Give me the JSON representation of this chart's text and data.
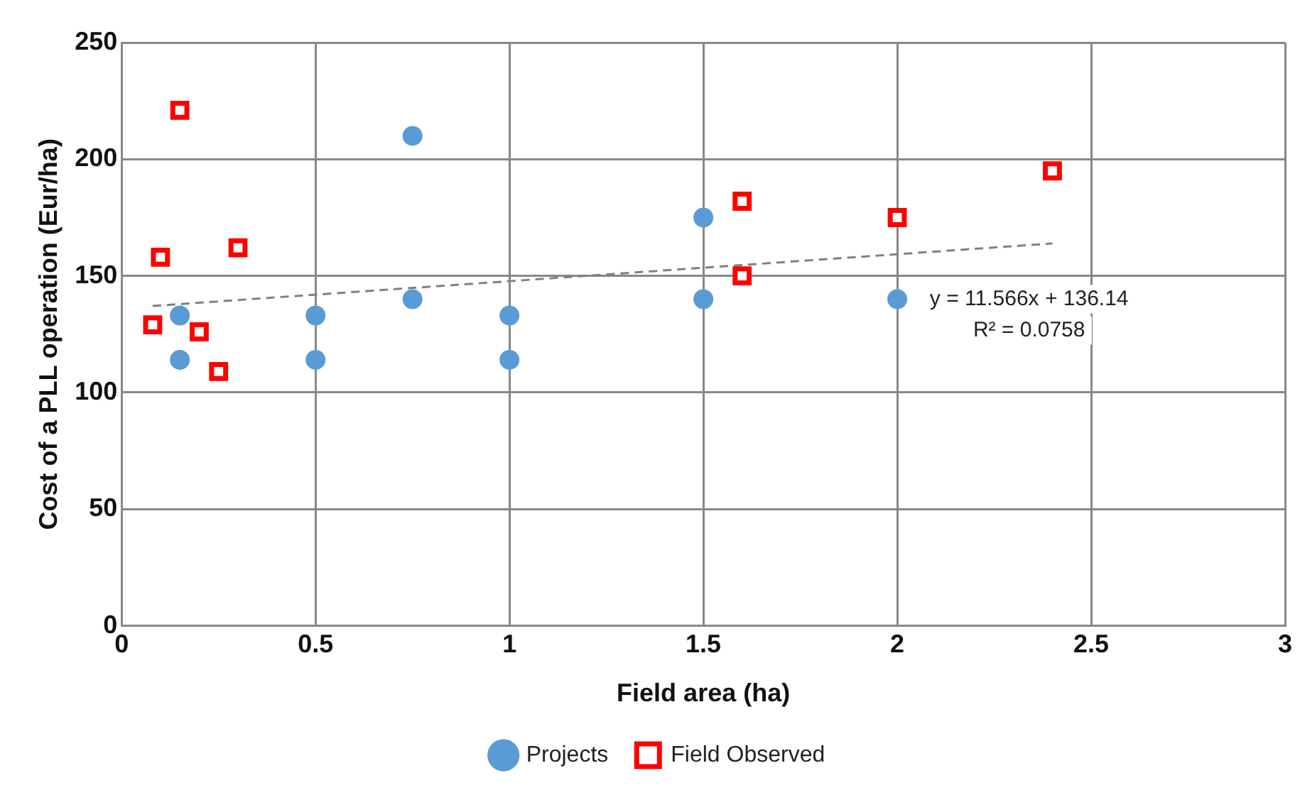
{
  "chart_data": {
    "type": "scatter",
    "xlabel": "Field area (ha)",
    "ylabel": "Cost of a PLL operation (Eur/ha)",
    "xlim": [
      0,
      3
    ],
    "xticks": [
      0,
      0.5,
      1,
      1.5,
      2,
      2.5,
      3
    ],
    "ylim": [
      0,
      250
    ],
    "yticks": [
      0,
      50,
      100,
      150,
      200,
      250
    ],
    "grid": true,
    "legend": "bottom",
    "series": [
      {
        "name": "Projects",
        "color": "#5b9bd5",
        "marker": "circle",
        "x": [
          0.15,
          0.15,
          0.5,
          0.5,
          0.75,
          0.75,
          1,
          1,
          1.5,
          1.5,
          2
        ],
        "values": [
          133,
          114,
          133,
          114,
          210,
          140,
          133,
          114,
          175,
          140,
          140
        ]
      },
      {
        "name": "Field Observed",
        "color": "#ff0000",
        "marker": "square",
        "x": [
          0.15,
          0.1,
          0.3,
          0.08,
          0.2,
          0.25,
          1.6,
          1.6,
          2,
          2.4
        ],
        "values": [
          221,
          158,
          162,
          129,
          126,
          109,
          182,
          150,
          175,
          195
        ]
      },
      {
        "type": "line",
        "color": "#808080",
        "line_style": "dashed",
        "marker": "none",
        "x": [
          0.08,
          2.4
        ],
        "values": [
          137.1,
          163.9
        ]
      }
    ],
    "annotations": [
      "y = 11.566x + 136.14",
      "R² = 0.0758"
    ]
  }
}
